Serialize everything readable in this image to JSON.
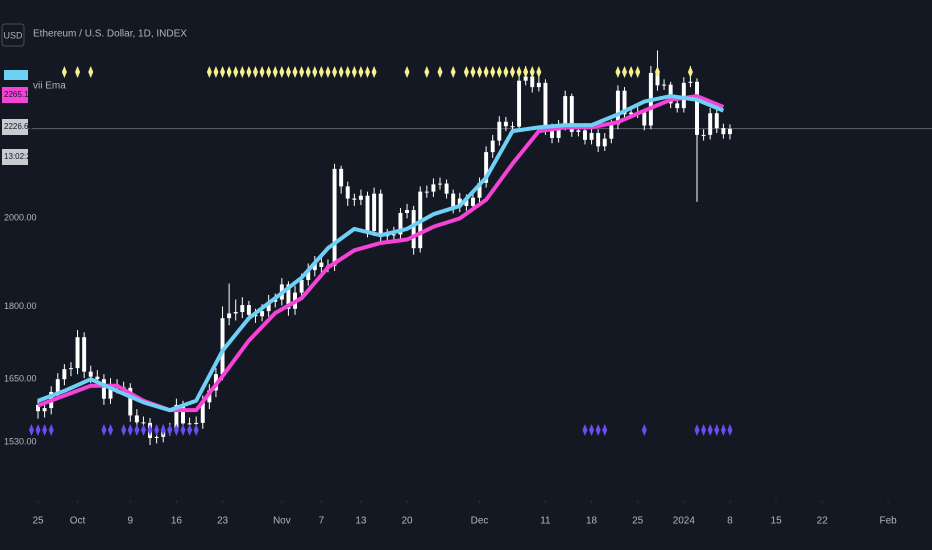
{
  "chart_data": {
    "type": "candlestick",
    "currency": "USD",
    "title": "Ethereum / U.S. Dollar, 1D, INDEX",
    "indicator": "vii Ema",
    "log_scale": true,
    "xlim": [
      -1.52,
      135.66
    ],
    "ylim": [
      1428,
      2597
    ],
    "yticks": [
      {
        "value": 1530,
        "label": "1530.00"
      },
      {
        "value": 1650,
        "label": "1650.00"
      },
      {
        "value": 1800,
        "label": "1800.00"
      },
      {
        "value": 2000,
        "label": "2000.00"
      }
    ],
    "xticks": [
      {
        "value": 0,
        "label": "25"
      },
      {
        "value": 6,
        "label": "Oct"
      },
      {
        "value": 14,
        "label": "9"
      },
      {
        "value": 21,
        "label": "16"
      },
      {
        "value": 28,
        "label": "23"
      },
      {
        "value": 37,
        "label": "Nov"
      },
      {
        "value": 43,
        "label": "7"
      },
      {
        "value": 49,
        "label": "13"
      },
      {
        "value": 56,
        "label": "20"
      },
      {
        "value": 67,
        "label": "Dec"
      },
      {
        "value": 77,
        "label": "11"
      },
      {
        "value": 84,
        "label": "18"
      },
      {
        "value": 91,
        "label": "25"
      },
      {
        "value": 98,
        "label": "2024"
      },
      {
        "value": 105,
        "label": "8"
      },
      {
        "value": 112,
        "label": "15"
      },
      {
        "value": 119,
        "label": "22"
      },
      {
        "value": 129,
        "label": "Feb"
      }
    ],
    "candle_color": "#ffffff",
    "open": [
      1600,
      1588,
      1594,
      1625,
      1650,
      1670,
      1672,
      1735,
      1665,
      1655,
      1650,
      1612,
      1640,
      1634,
      1633,
      1580,
      1567,
      1566,
      1538,
      1540,
      1553,
      1556,
      1600,
      1565,
      1565,
      1566,
      1605,
      1628,
      1660,
      1775,
      1785,
      1788,
      1803,
      1782,
      1779,
      1790,
      1810,
      1815,
      1848,
      1795,
      1830,
      1858,
      1880,
      1897,
      1887,
      1890,
      2122,
      2078,
      2048,
      2045,
      2055,
      1970,
      2060,
      1958,
      1960,
      1962,
      2013,
      2020,
      1930,
      2065,
      2065,
      2083,
      2085,
      2060,
      2027,
      2048,
      2030,
      2050,
      2087,
      2165,
      2195,
      2245,
      2233,
      2232,
      2358,
      2370,
      2340,
      2352,
      2225,
      2202,
      2235,
      2315,
      2218,
      2222,
      2197,
      2215,
      2180,
      2200,
      2238,
      2330,
      2265,
      2270,
      2270,
      2235,
      2380,
      2345,
      2347,
      2295,
      2282,
      2352,
      2355,
      2210,
      2210,
      2268,
      2228,
      2212
    ],
    "high": [
      1612,
      1606,
      1636,
      1662,
      1680,
      1684,
      1750,
      1745,
      1677,
      1668,
      1660,
      1652,
      1650,
      1645,
      1642,
      1592,
      1578,
      1575,
      1552,
      1562,
      1566,
      1612,
      1608,
      1576,
      1578,
      1618,
      1640,
      1672,
      1800,
      1850,
      1815,
      1820,
      1812,
      1795,
      1805,
      1825,
      1828,
      1862,
      1855,
      1845,
      1872,
      1895,
      1912,
      1908,
      1904,
      2135,
      2130,
      2090,
      2060,
      2070,
      2065,
      2075,
      2070,
      1975,
      1980,
      2025,
      2035,
      2030,
      2078,
      2080,
      2098,
      2100,
      2095,
      2070,
      2062,
      2058,
      2065,
      2100,
      2180,
      2210,
      2260,
      2258,
      2245,
      2375,
      2400,
      2380,
      2370,
      2362,
      2240,
      2250,
      2330,
      2322,
      2235,
      2232,
      2228,
      2225,
      2215,
      2250,
      2345,
      2340,
      2285,
      2285,
      2280,
      2400,
      2445,
      2362,
      2355,
      2308,
      2368,
      2400,
      2365,
      2225,
      2282,
      2278,
      2240,
      2238
    ],
    "low": [
      1574,
      1576,
      1582,
      1612,
      1638,
      1656,
      1660,
      1652,
      1642,
      1638,
      1600,
      1602,
      1622,
      1620,
      1568,
      1555,
      1552,
      1525,
      1528,
      1530,
      1542,
      1545,
      1552,
      1553,
      1555,
      1555,
      1592,
      1615,
      1648,
      1760,
      1770,
      1775,
      1768,
      1765,
      1768,
      1778,
      1798,
      1802,
      1780,
      1782,
      1818,
      1845,
      1866,
      1872,
      1875,
      1878,
      2060,
      2030,
      2030,
      2032,
      1955,
      1958,
      1942,
      1945,
      1948,
      1950,
      2000,
      1915,
      1920,
      2050,
      2052,
      2070,
      2048,
      2012,
      2015,
      2018,
      2020,
      2038,
      2075,
      2150,
      2182,
      2220,
      2218,
      2220,
      2345,
      2325,
      2328,
      2210,
      2188,
      2190,
      2222,
      2205,
      2206,
      2185,
      2185,
      2165,
      2168,
      2188,
      2225,
      2252,
      2255,
      2255,
      2222,
      2225,
      2330,
      2332,
      2282,
      2270,
      2270,
      2340,
      2040,
      2195,
      2198,
      2215,
      2200,
      2198
    ],
    "close": [
      1588,
      1594,
      1625,
      1650,
      1670,
      1672,
      1735,
      1665,
      1655,
      1650,
      1612,
      1640,
      1634,
      1633,
      1580,
      1567,
      1566,
      1538,
      1540,
      1553,
      1556,
      1600,
      1565,
      1565,
      1566,
      1605,
      1628,
      1660,
      1775,
      1785,
      1788,
      1803,
      1782,
      1779,
      1790,
      1810,
      1815,
      1848,
      1795,
      1830,
      1858,
      1880,
      1897,
      1887,
      1890,
      2122,
      2078,
      2048,
      2045,
      2055,
      1970,
      2060,
      1958,
      1960,
      1962,
      2013,
      2020,
      1930,
      2065,
      2065,
      2083,
      2085,
      2060,
      2027,
      2048,
      2030,
      2050,
      2087,
      2165,
      2195,
      2245,
      2233,
      2232,
      2358,
      2370,
      2340,
      2352,
      2225,
      2202,
      2235,
      2315,
      2218,
      2222,
      2197,
      2215,
      2180,
      2200,
      2238,
      2330,
      2265,
      2270,
      2270,
      2235,
      2380,
      2345,
      2347,
      2295,
      2282,
      2352,
      2355,
      2210,
      2210,
      2268,
      2228,
      2212,
      2226
    ],
    "series": [
      {
        "color": "#f542d7",
        "x": [
          0,
          4,
          8,
          12,
          16,
          20,
          24,
          28,
          32,
          36,
          40,
          44,
          48,
          52,
          56,
          60,
          64,
          68,
          72,
          76,
          80,
          84,
          88,
          92,
          96,
          100,
          104
        ],
        "values": [
          1599,
          1618,
          1637,
          1637,
          1608,
          1590,
          1590,
          1656,
          1728,
          1786,
          1818,
          1886,
          1925,
          1942,
          1950,
          1980,
          2000,
          2045,
          2135,
          2220,
          2230,
          2230,
          2244,
          2275,
          2305,
          2315,
          2285
        ]
      },
      {
        "color": "#6fd0f5",
        "x": [
          0,
          4,
          8,
          12,
          16,
          20,
          24,
          28,
          32,
          36,
          40,
          44,
          48,
          52,
          56,
          60,
          64,
          68,
          72,
          76,
          80,
          84,
          88,
          92,
          96,
          100,
          104
        ],
        "values": [
          1608,
          1627,
          1650,
          1627,
          1605,
          1590,
          1608,
          1707,
          1775,
          1818,
          1863,
          1930,
          1975,
          1960,
          1975,
          2010,
          2030,
          2100,
          2220,
          2230,
          2236,
          2236,
          2265,
          2300,
          2315,
          2305,
          2275
        ]
      }
    ],
    "markers": [
      {
        "color": "#f5ef8c",
        "position": "top",
        "x": [
          4,
          6,
          8,
          26,
          27,
          28,
          29,
          30,
          31,
          32,
          33,
          34,
          35,
          36,
          37,
          38,
          39,
          40,
          41,
          42,
          43,
          44,
          45,
          46,
          47,
          48,
          49,
          50,
          51,
          56,
          59,
          61,
          63,
          65,
          66,
          67,
          68,
          69,
          70,
          71,
          72,
          73,
          74,
          75,
          76,
          88,
          89,
          90,
          91,
          94,
          99
        ]
      },
      {
        "color": "#6a4df0",
        "position": "bottom",
        "x": [
          -1,
          0,
          1,
          2,
          10,
          11,
          13,
          14,
          15,
          16,
          17,
          18,
          19,
          20,
          21,
          22,
          23,
          24,
          83,
          84,
          85,
          86,
          92,
          100,
          101,
          102,
          103,
          104,
          105
        ]
      }
    ],
    "price_line": 2226.6,
    "price_tags": [
      {
        "label": "2265.13",
        "color": "#f542d7"
      },
      {
        "label": "2226.60",
        "color": "#c8cad0"
      },
      {
        "label": "13:02:21",
        "color": "#c8cad0"
      }
    ]
  }
}
